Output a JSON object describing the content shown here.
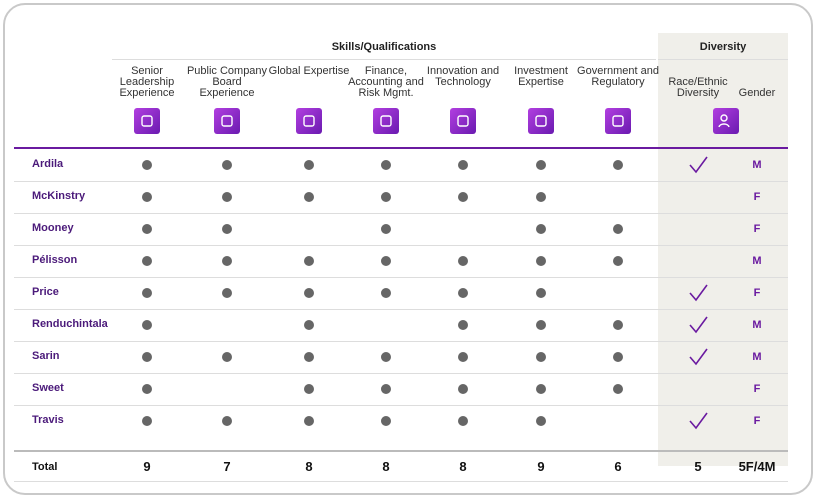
{
  "header": {
    "skills_title": "Skills/Qualifications",
    "diversity_title": "Diversity"
  },
  "columns": [
    "Senior Leadership Experience",
    "Public Company Board Experience",
    "Global Expertise",
    "Finance, Accounting and Risk Mgmt.",
    "Innovation and Technology",
    "Investment Expertise",
    "Government and Regulatory"
  ],
  "diversity_columns": [
    "Race/Ethnic Diversity",
    "Gender"
  ],
  "rows": [
    {
      "name": "Ardila",
      "skills": [
        true,
        true,
        true,
        true,
        true,
        true,
        true
      ],
      "diverse": true,
      "gender": "M"
    },
    {
      "name": "McKinstry",
      "skills": [
        true,
        true,
        true,
        true,
        true,
        true,
        false
      ],
      "diverse": false,
      "gender": "F"
    },
    {
      "name": "Mooney",
      "skills": [
        true,
        true,
        false,
        true,
        false,
        true,
        true
      ],
      "diverse": false,
      "gender": "F"
    },
    {
      "name": "Pélisson",
      "skills": [
        true,
        true,
        true,
        true,
        true,
        true,
        true
      ],
      "diverse": false,
      "gender": "M"
    },
    {
      "name": "Price",
      "skills": [
        true,
        true,
        true,
        true,
        true,
        true,
        false
      ],
      "diverse": true,
      "gender": "F"
    },
    {
      "name": "Renduchintala",
      "skills": [
        true,
        false,
        true,
        false,
        true,
        true,
        true
      ],
      "diverse": true,
      "gender": "M"
    },
    {
      "name": "Sarin",
      "skills": [
        true,
        true,
        true,
        true,
        true,
        true,
        true
      ],
      "diverse": true,
      "gender": "M"
    },
    {
      "name": "Sweet",
      "skills": [
        true,
        false,
        true,
        true,
        true,
        true,
        true
      ],
      "diverse": false,
      "gender": "F"
    },
    {
      "name": "Travis",
      "skills": [
        true,
        true,
        true,
        true,
        true,
        true,
        false
      ],
      "diverse": true,
      "gender": "F"
    }
  ],
  "total": {
    "label": "Total",
    "skills": [
      9,
      7,
      8,
      8,
      8,
      9,
      6
    ],
    "race": 5,
    "gender": "5F/4M"
  }
}
